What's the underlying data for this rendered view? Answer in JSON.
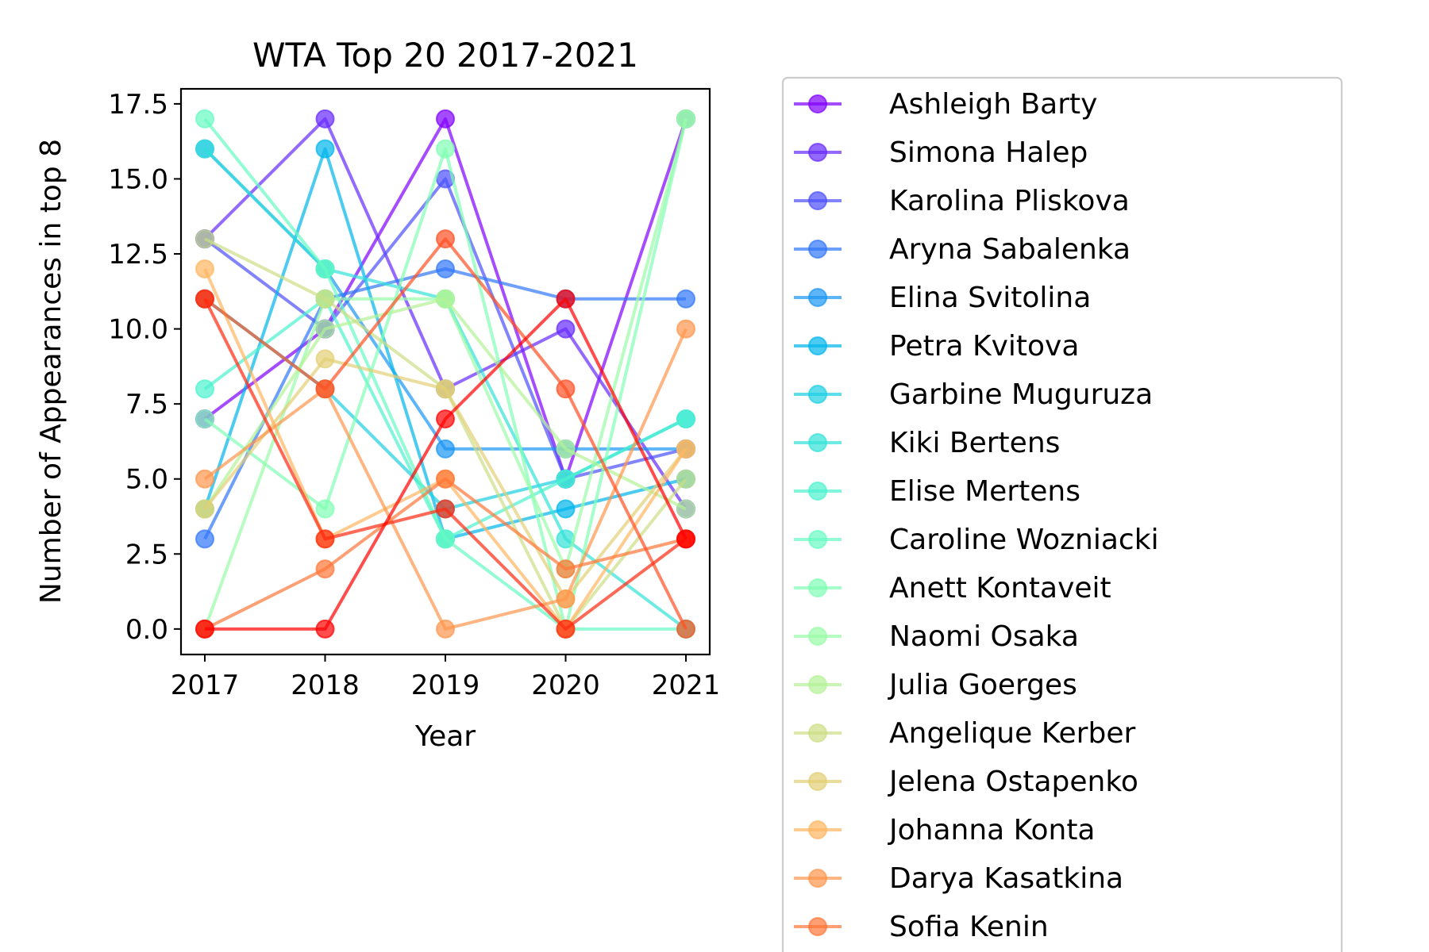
{
  "chart_data": {
    "type": "line",
    "title": "WTA Top 20 2017-2021",
    "xlabel": "Year",
    "ylabel": "Number of Appearances in top 8",
    "categories": [
      "2017",
      "2018",
      "2019",
      "2020",
      "2021"
    ],
    "ylim": [
      -0.85,
      18.0
    ],
    "yticks": [
      0.0,
      2.5,
      5.0,
      7.5,
      10.0,
      12.5,
      15.0,
      17.5
    ],
    "ytick_labels": [
      "0.0",
      "2.5",
      "5.0",
      "7.5",
      "10.0",
      "12.5",
      "15.0",
      "17.5"
    ],
    "grid": false,
    "legend_position": "outside-right",
    "series": [
      {
        "name": "Ashleigh Barty",
        "color": "#8000ff",
        "values": [
          7,
          10,
          17,
          5,
          17
        ]
      },
      {
        "name": "Simona Halep",
        "color": "#6629fe",
        "values": [
          13,
          17,
          8,
          10,
          4
        ]
      },
      {
        "name": "Karolina Pliskova",
        "color": "#4c50fc",
        "values": [
          13,
          10,
          15,
          5,
          6
        ]
      },
      {
        "name": "Aryna Sabalenka",
        "color": "#3176f8",
        "values": [
          3,
          11,
          12,
          11,
          11
        ]
      },
      {
        "name": "Elina Svitolina",
        "color": "#1996f3",
        "values": [
          16,
          12,
          6,
          6,
          6
        ]
      },
      {
        "name": "Petra Kvitova",
        "color": "#00b5eb",
        "values": [
          4,
          16,
          3,
          4,
          5
        ]
      },
      {
        "name": "Garbine Muguruza",
        "color": "#1ccfe3",
        "values": [
          11,
          8,
          4,
          5,
          7
        ]
      },
      {
        "name": "Kiki Bertens",
        "color": "#33e3d9",
        "values": [
          16,
          12,
          11,
          3,
          0
        ]
      },
      {
        "name": "Elise Mertens",
        "color": "#4cf2ce",
        "values": [
          8,
          11,
          3,
          5,
          7
        ]
      },
      {
        "name": "Caroline Wozniacki",
        "color": "#66fbc2",
        "values": [
          17,
          12,
          3,
          0,
          0
        ]
      },
      {
        "name": "Anett Kontaveit",
        "color": "#80ffb4",
        "values": [
          7,
          4,
          16,
          0,
          17
        ]
      },
      {
        "name": "Naomi Osaka",
        "color": "#99fba6",
        "values": [
          0,
          11,
          11,
          2,
          17
        ]
      },
      {
        "name": "Julia Goerges",
        "color": "#b3f296",
        "values": [
          4,
          10,
          11,
          6,
          4
        ]
      },
      {
        "name": "Angelique Kerber",
        "color": "#ccde85",
        "values": [
          13,
          11,
          8,
          0,
          5
        ]
      },
      {
        "name": "Jelena Ostapenko",
        "color": "#e3cf73",
        "values": [
          4,
          9,
          8,
          1,
          6
        ]
      },
      {
        "name": "Johanna Konta",
        "color": "#ffb560",
        "values": [
          12,
          3,
          5,
          0,
          6
        ]
      },
      {
        "name": "Darya Kasatkina",
        "color": "#ff964d",
        "values": [
          5,
          8,
          0,
          1,
          10
        ]
      },
      {
        "name": "Sofia Kenin",
        "color": "#ff7638",
        "values": [
          0,
          2,
          5,
          2,
          3
        ]
      },
      {
        "name": "",
        "color": "#ff5024",
        "values": [
          11,
          8,
          13,
          8,
          0
        ]
      },
      {
        "name": "",
        "color": "#ff290f",
        "values": [
          11,
          3,
          4,
          0,
          3
        ]
      },
      {
        "name": "",
        "color": "#ff0000",
        "values": [
          0,
          0,
          7,
          11,
          3
        ]
      }
    ]
  }
}
